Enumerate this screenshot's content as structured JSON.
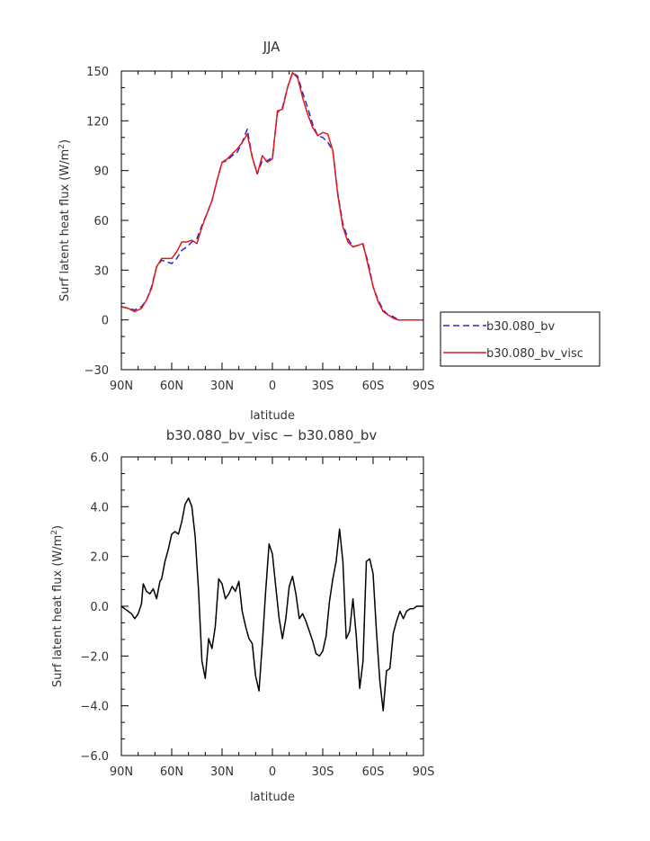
{
  "chart_data": [
    {
      "type": "line",
      "title": "JJA",
      "xlabel": "latitude",
      "ylabel": "Surf latent heat flux (W/m²)",
      "ylabel_main": "Surf latent heat flux (W/m",
      "ylabel_sup": "2",
      "ylabel_close": ")",
      "x_tick_labels": [
        "90N",
        "60N",
        "30N",
        "0",
        "30S",
        "60S",
        "90S"
      ],
      "x_ticks": [
        -90,
        -60,
        -30,
        0,
        30,
        60,
        90
      ],
      "xlim": [
        -90,
        90
      ],
      "y_ticks": [
        -30,
        0,
        30,
        60,
        90,
        120,
        150
      ],
      "y_tick_labels": [
        "−30",
        "0",
        "30",
        "60",
        "90",
        "120",
        "150"
      ],
      "ylim": [
        -30,
        150
      ],
      "legend": "right",
      "x": [
        -90,
        -86,
        -82,
        -78,
        -75,
        -72,
        -69,
        -66,
        -63,
        -60,
        -57,
        -54,
        -51,
        -48,
        -45,
        -42,
        -39,
        -36,
        -33,
        -30,
        -27,
        -24,
        -21,
        -18,
        -15,
        -12,
        -9,
        -6,
        -3,
        0,
        3,
        6,
        9,
        12,
        15,
        18,
        21,
        24,
        27,
        30,
        33,
        36,
        39,
        42,
        45,
        48,
        51,
        54,
        57,
        60,
        63,
        66,
        69,
        72,
        75,
        78,
        81,
        84,
        87,
        90
      ],
      "series": [
        {
          "name": "b30.080_bv",
          "color": "#2a2ac8",
          "dash": "7,4",
          "values": [
            8,
            7,
            6,
            8,
            12,
            20,
            32,
            36,
            35,
            34,
            37,
            42,
            44,
            47,
            49,
            57,
            64,
            72,
            84,
            95,
            96,
            99,
            101,
            107,
            115,
            98,
            88,
            96,
            96,
            98,
            125,
            128,
            140,
            149,
            147,
            137,
            128,
            118,
            111,
            110,
            107,
            102,
            76,
            58,
            49,
            44,
            45,
            45,
            35,
            20,
            12,
            6,
            3,
            2,
            0,
            0,
            0,
            0,
            0,
            0
          ]
        },
        {
          "name": "b30.080_bv_visc",
          "color": "#e01818",
          "dash": "",
          "values": [
            8,
            7,
            5,
            7,
            12,
            19,
            32,
            37,
            37,
            37,
            41,
            47,
            47,
            48,
            46,
            56,
            64,
            72,
            84,
            95,
            97,
            100,
            103,
            107,
            112,
            98,
            88,
            99,
            95,
            97,
            126,
            127,
            140,
            149,
            146,
            134,
            124,
            116,
            111,
            113,
            112,
            102,
            75,
            56,
            47,
            44,
            45,
            46,
            33,
            20,
            11,
            5,
            3,
            1,
            0,
            0,
            0,
            0,
            0,
            0
          ]
        }
      ]
    },
    {
      "type": "line",
      "title": "b30.080_bv_visc − b30.080_bv",
      "xlabel": "latitude",
      "ylabel_main": "Surf latent heat flux (W/m",
      "ylabel_sup": "2",
      "ylabel_close": ")",
      "x_tick_labels": [
        "90N",
        "60N",
        "30N",
        "0",
        "30S",
        "60S",
        "90S"
      ],
      "x_ticks": [
        -90,
        -60,
        -30,
        0,
        30,
        60,
        90
      ],
      "xlim": [
        -90,
        90
      ],
      "y_ticks": [
        -6,
        -4,
        -2,
        0,
        2,
        4,
        6
      ],
      "y_tick_labels": [
        "−6.0",
        "−4.0",
        "−2.0",
        "0.0",
        "2.0",
        "4.0",
        "6.0"
      ],
      "ylim": [
        -6,
        6
      ],
      "series": [
        {
          "name": "",
          "color": "#000000",
          "dash": "",
          "x": [
            -90,
            -88,
            -86,
            -84,
            -82,
            -80,
            -78,
            -77,
            -75,
            -73,
            -71,
            -69,
            -67,
            -66,
            -64,
            -62,
            -60,
            -58,
            -56,
            -54,
            -52,
            -50,
            -48,
            -46,
            -44,
            -42,
            -40,
            -38,
            -36,
            -34,
            -32,
            -30,
            -28,
            -26,
            -24,
            -22,
            -20,
            -18,
            -16,
            -14,
            -12,
            -10,
            -8,
            -6,
            -4,
            -2,
            0,
            2,
            4,
            6,
            8,
            10,
            12,
            14,
            16,
            18,
            20,
            22,
            24,
            26,
            28,
            30,
            32,
            34,
            36,
            38,
            40,
            42,
            44,
            46,
            48,
            50,
            52,
            54,
            56,
            58,
            60,
            62,
            64,
            66,
            68,
            70,
            72,
            74,
            76,
            78,
            80,
            82,
            84,
            86,
            88,
            90
          ],
          "y": [
            0,
            -0.1,
            -0.2,
            -0.3,
            -0.5,
            -0.3,
            0.1,
            0.9,
            0.6,
            0.5,
            0.7,
            0.3,
            1.0,
            1.1,
            1.8,
            2.3,
            2.9,
            3.0,
            2.9,
            3.4,
            4.1,
            4.35,
            4.0,
            2.8,
            0.6,
            -2.2,
            -2.9,
            -1.3,
            -1.7,
            -0.8,
            1.1,
            0.9,
            0.3,
            0.5,
            0.8,
            0.6,
            1.0,
            -0.2,
            -0.8,
            -1.3,
            -1.5,
            -2.8,
            -3.4,
            -1.5,
            0.6,
            2.5,
            2.1,
            0.8,
            -0.5,
            -1.3,
            -0.5,
            0.8,
            1.2,
            0.5,
            -0.5,
            -0.3,
            -0.6,
            -1.0,
            -1.4,
            -1.9,
            -2.0,
            -1.8,
            -1.2,
            0.2,
            1.1,
            1.8,
            3.1,
            1.8,
            -1.3,
            -1.0,
            0.3,
            -1.2,
            -3.3,
            -2.2,
            1.8,
            1.9,
            1.3,
            -1.0,
            -3.0,
            -4.2,
            -2.6,
            -2.5,
            -1.1,
            -0.6,
            -0.2,
            -0.5,
            -0.2,
            -0.1,
            -0.1,
            0,
            0,
            0
          ]
        }
      ]
    }
  ]
}
